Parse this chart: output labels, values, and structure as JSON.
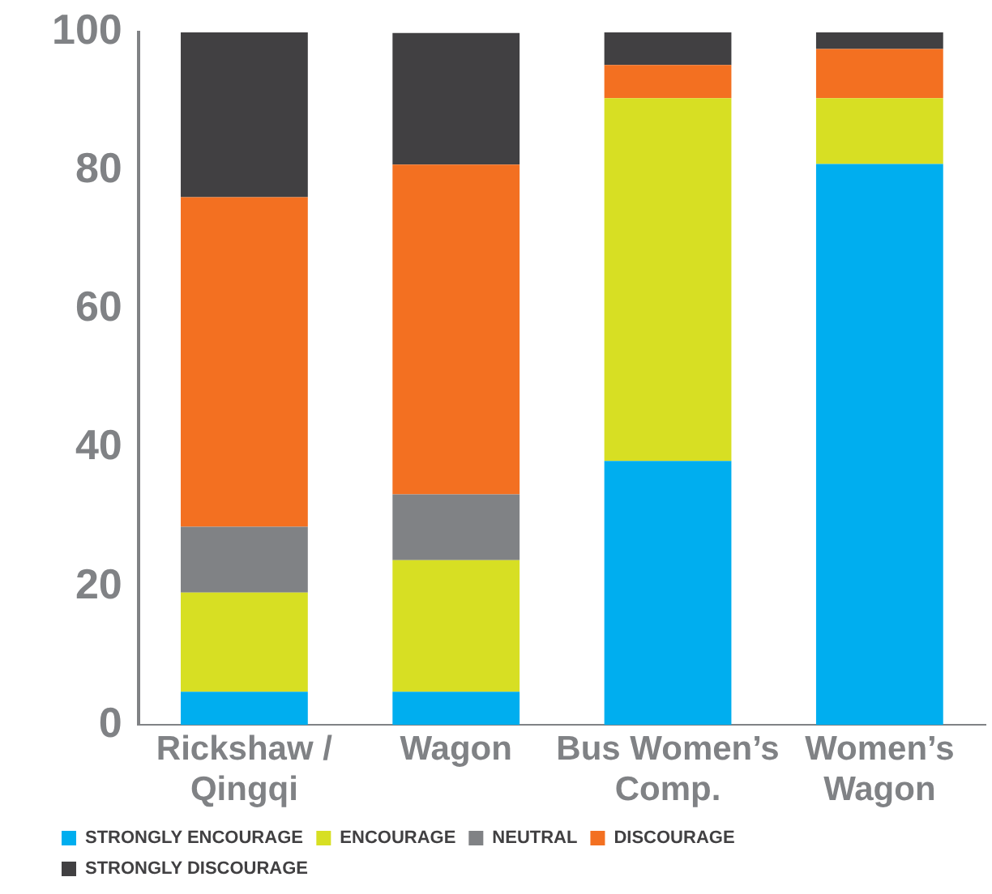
{
  "chart_data": {
    "type": "bar",
    "stacked": true,
    "categories": [
      "Rickshaw / Qingqi",
      "Wagon",
      "Bus Women’s Comp.",
      "Women’s Wagon"
    ],
    "series": [
      {
        "name": "STRONGLY ENCOURAGE",
        "color": "#00aeef",
        "values": [
          4.8,
          4.8,
          38.1,
          81.0
        ]
      },
      {
        "name": "ENCOURAGE",
        "color": "#d7df23",
        "values": [
          14.3,
          19.0,
          52.4,
          9.5
        ]
      },
      {
        "name": "NEUTRAL",
        "color": "#808285",
        "values": [
          9.5,
          9.5,
          0,
          0
        ]
      },
      {
        "name": "DISCOURAGE",
        "color": "#f37021",
        "values": [
          47.6,
          47.6,
          4.8,
          7.1
        ]
      },
      {
        "name": "STRONGLY DISCOURAGE",
        "color": "#414042",
        "values": [
          23.8,
          19.0,
          4.7,
          2.4
        ]
      }
    ],
    "ylim": [
      0,
      100
    ],
    "yticks": [
      0,
      20,
      40,
      60,
      80,
      100
    ],
    "grid": false,
    "legend": "bottom left"
  }
}
